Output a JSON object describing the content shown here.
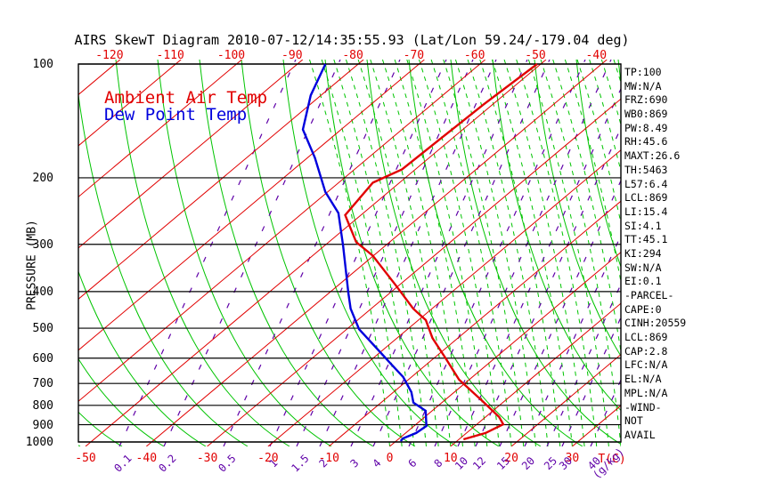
{
  "title": "AIRS SkewT Diagram 2010-07-12/14:35:55.93 (Lat/Lon 59.24/-179.04 deg)",
  "legend": {
    "ambient_label": "Ambient Air Temp",
    "dewpoint_label": "Dew Point Temp"
  },
  "axes": {
    "pressure_label": "PRESSURE (MB)",
    "temp_unit_label": "T(C)",
    "mixing_ratio_unit_label": "(g/kg)",
    "pressure_ticks": [
      100,
      200,
      300,
      400,
      500,
      600,
      700,
      800,
      900,
      1000
    ],
    "top_temp_ticks": [
      -120,
      -110,
      -100,
      -90,
      -80,
      -70,
      -60,
      -50,
      -40
    ],
    "bottom_temp_ticks": [
      -50,
      -40,
      -30,
      -20,
      -10,
      0,
      10,
      20,
      30
    ],
    "mixing_ratio_ticks": [
      "0.1",
      "0.2",
      "0.5",
      "1",
      "1.5",
      "2",
      "3",
      "4",
      "6",
      "8",
      "10",
      "12",
      "15",
      "20",
      "25",
      "30",
      "40"
    ],
    "mixing_ratio_anchor_x": [
      138,
      188,
      255,
      307,
      337,
      363,
      398,
      423,
      463,
      492,
      518,
      538,
      565,
      593,
      618,
      635,
      667
    ]
  },
  "stats_panel": {
    "lines": [
      "TP:100",
      "MW:N/A",
      "FRZ:690",
      "WB0:869",
      "PW:8.49",
      "RH:45.6",
      "MAXT:26.6",
      "TH:5463",
      "L57:6.4",
      "LCL:869",
      "LI:15.4",
      "SI:4.1",
      "TT:45.1",
      "KI:294",
      "SW:N/A",
      "EI:0.1",
      "-PARCEL-",
      "CAPE:0",
      "CINH:20559",
      "LCL:869",
      "CAP:2.8",
      "LFC:N/A",
      "EL:N/A",
      "MPL:N/A",
      "-WIND-",
      "NOT",
      "AVAIL"
    ]
  },
  "colors": {
    "isotherm_red": "#e10000",
    "temp_curve_red": "#e10000",
    "dewpoint_blue": "#0000dd",
    "adiabat_green": "#00c400",
    "mixing_purple": "#5f00a8",
    "frame_black": "#000000",
    "background": "#ffffff"
  },
  "chart_data": {
    "type": "line",
    "subtype": "skewT-logP sounding",
    "title": "AIRS SkewT Diagram 2010-07-12/14:35:55.93 (Lat/Lon 59.24/-179.04 deg)",
    "xlabel": "T(C)",
    "ylabel": "PRESSURE (MB)",
    "pressure_range_mb": [
      100,
      1000
    ],
    "bottom_temp_range_c": [
      -50,
      30
    ],
    "top_temp_range_c": [
      -120,
      -40
    ],
    "grid": {
      "isotherms_every_c": 10,
      "dry_adiabats": "solid green, curved up-left",
      "moist_adiabats": "dashed green, near vertical",
      "mixing_ratio_lines": "dashed purple, slanted up-right",
      "pressure_lines": "solid black horizontals at each 100 mb"
    },
    "series": [
      {
        "name": "Ambient Air Temp",
        "color": "#e10000",
        "points_p_t": [
          [
            100,
            -49.7
          ],
          [
            128,
            -50.6
          ],
          [
            159,
            -51.0
          ],
          [
            190,
            -51.3
          ],
          [
            206,
            -53.5
          ],
          [
            251,
            -51.7
          ],
          [
            296,
            -44.6
          ],
          [
            321,
            -39.3
          ],
          [
            384,
            -29.8
          ],
          [
            444,
            -22.2
          ],
          [
            476,
            -17.9
          ],
          [
            531,
            -13.3
          ],
          [
            604,
            -6.9
          ],
          [
            684,
            -0.8
          ],
          [
            775,
            6.9
          ],
          [
            859,
            13.1
          ],
          [
            898,
            15.2
          ],
          [
            947,
            14.0
          ],
          [
            984,
            11.6
          ]
        ]
      },
      {
        "name": "Dew Point Temp",
        "color": "#0000dd",
        "points_p_t": [
          [
            100,
            -84.5
          ],
          [
            121,
            -80.8
          ],
          [
            149,
            -75.4
          ],
          [
            177,
            -67.9
          ],
          [
            218,
            -59.5
          ],
          [
            248,
            -53.2
          ],
          [
            303,
            -46.0
          ],
          [
            404,
            -35.9
          ],
          [
            444,
            -32.5
          ],
          [
            503,
            -27.1
          ],
          [
            554,
            -21.6
          ],
          [
            620,
            -15.2
          ],
          [
            673,
            -10.5
          ],
          [
            738,
            -6.2
          ],
          [
            787,
            -3.8
          ],
          [
            827,
            -0.2
          ],
          [
            907,
            2.9
          ],
          [
            947,
            2.6
          ],
          [
            978,
            1.5
          ],
          [
            994,
            1.6
          ]
        ]
      }
    ]
  }
}
